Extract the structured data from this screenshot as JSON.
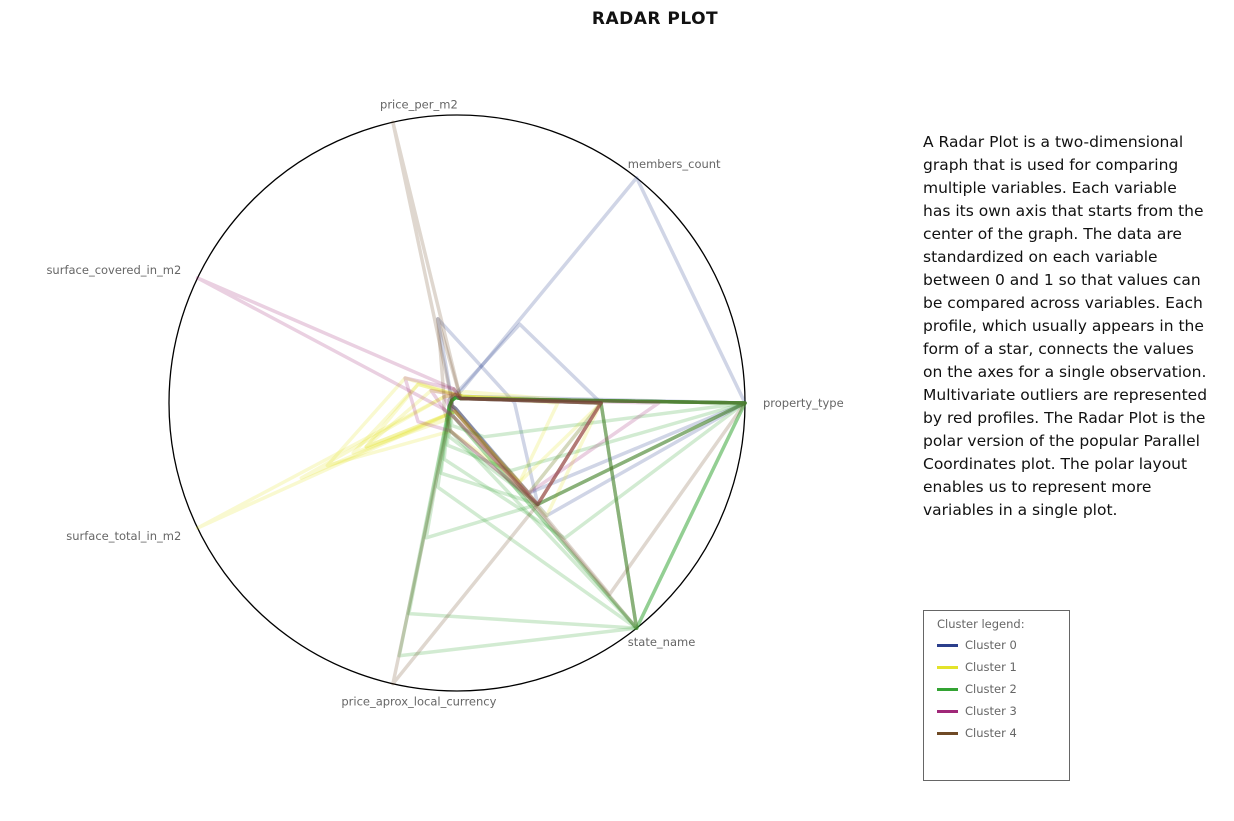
{
  "chart_data": {
    "type": "radar",
    "title": "RADAR PLOT",
    "axes": [
      "property_type",
      "members_count",
      "price_per_m2",
      "surface_covered_in_m2",
      "surface_total_in_m2",
      "price_aprox_local_currency",
      "state_name"
    ],
    "range": [
      0,
      1
    ],
    "grid": false,
    "legend_title": "Cluster legend:",
    "legend_position": "right",
    "series": [
      {
        "name": "Cluster 0",
        "color": "#2b3f8c",
        "profiles": [
          [
            1,
            0.03,
            0.03,
            0.03,
            0.03,
            0.03,
            0.4
          ],
          [
            1,
            1,
            0.02,
            0.02,
            0.02,
            0.02,
            0.5
          ],
          [
            0.5,
            0.35,
            0.03,
            0.02,
            0.02,
            0.02,
            0.4
          ],
          [
            0.2,
            0.15,
            0.3,
            0.02,
            0.02,
            0.02,
            0.45
          ]
        ]
      },
      {
        "name": "Cluster 1",
        "color": "#e3e32a",
        "profiles": [
          [
            0.5,
            0.03,
            0.03,
            0.05,
            1,
            0.03,
            0.45
          ],
          [
            0.5,
            0.03,
            0.03,
            0.05,
            0.6,
            0.03,
            0.45
          ],
          [
            0.5,
            0.03,
            0.03,
            0.2,
            0.5,
            0.1,
            0.35
          ],
          [
            0.5,
            0.05,
            0.03,
            0.15,
            0.4,
            0.05,
            0.5
          ],
          [
            0.5,
            0.03,
            0.03,
            0.15,
            0.35,
            0.03,
            0.4
          ],
          [
            0.35,
            0.03,
            0.03,
            0.1,
            0.35,
            0.03,
            0.35
          ]
        ]
      },
      {
        "name": "Cluster 2",
        "color": "#33a333",
        "profiles": [
          [
            1,
            0.02,
            0.02,
            0.02,
            0.03,
            0.48,
            0.45
          ],
          [
            1,
            0.02,
            0.02,
            0.02,
            0.03,
            0.75,
            1
          ],
          [
            1,
            0.02,
            0.02,
            0.02,
            0.03,
            0.9,
            1
          ],
          [
            1,
            0.02,
            0.02,
            0.02,
            0.03,
            0.12,
            0.45
          ],
          [
            1,
            0.02,
            0.02,
            0.02,
            0.03,
            0.15,
            0.3
          ],
          [
            1,
            0.02,
            0.02,
            0.02,
            0.03,
            0.2,
            0.6
          ],
          [
            1,
            0.02,
            0.02,
            0.02,
            0.03,
            0.25,
            0.45
          ],
          [
            1,
            0.02,
            0.02,
            0.02,
            0.03,
            0.08,
            0.15
          ],
          [
            0.5,
            0.02,
            0.02,
            0.02,
            0.03,
            0.3,
            1
          ],
          [
            0.5,
            0.02,
            0.02,
            0.02,
            0.03,
            0.1,
            1
          ],
          [
            0.5,
            0.02,
            0.02,
            0.02,
            0.03,
            0.05,
            1
          ],
          [
            1,
            0.02,
            0.02,
            0.02,
            0.03,
            0.05,
            1
          ]
        ]
      },
      {
        "name": "Cluster 3",
        "color": "#a02878",
        "profiles": [
          [
            0.5,
            0.02,
            0.05,
            1,
            0.05,
            0.05,
            0.45
          ],
          [
            0.5,
            0.02,
            0.05,
            0.2,
            0.15,
            0.1,
            0.45
          ],
          [
            0.5,
            0.02,
            0.03,
            0.1,
            0.05,
            0.05,
            0.45
          ],
          [
            0.7,
            0.02,
            0.03,
            0.05,
            0.03,
            0.03,
            0.4
          ]
        ]
      },
      {
        "name": "Cluster 4",
        "color": "#6f4a26",
        "profiles": [
          [
            0.5,
            0.02,
            1,
            0.02,
            0.02,
            1,
            0.45
          ],
          [
            1,
            0.02,
            0.3,
            0.05,
            0.05,
            0.1,
            0.45
          ],
          [
            1,
            0.02,
            0.05,
            0.02,
            0.02,
            0.02,
            0.85
          ],
          [
            0.5,
            0.02,
            0.03,
            0.03,
            0.02,
            0.03,
            1
          ]
        ]
      }
    ]
  },
  "description": "A Radar Plot is a two-dimensional graph that is used for comparing multiple variables. Each variable has its own axis that starts from the center of the graph. The data are standardized on each variable between 0 and 1 so that values can be compared across variables. Each profile, which usually appears in the form of a star, connects the values on the axes for a single observation. Multivariate outliers are represented by red profiles. The Radar Plot is the polar version of the popular Parallel Coordinates plot. The polar layout enables us to represent more variables in a single plot."
}
